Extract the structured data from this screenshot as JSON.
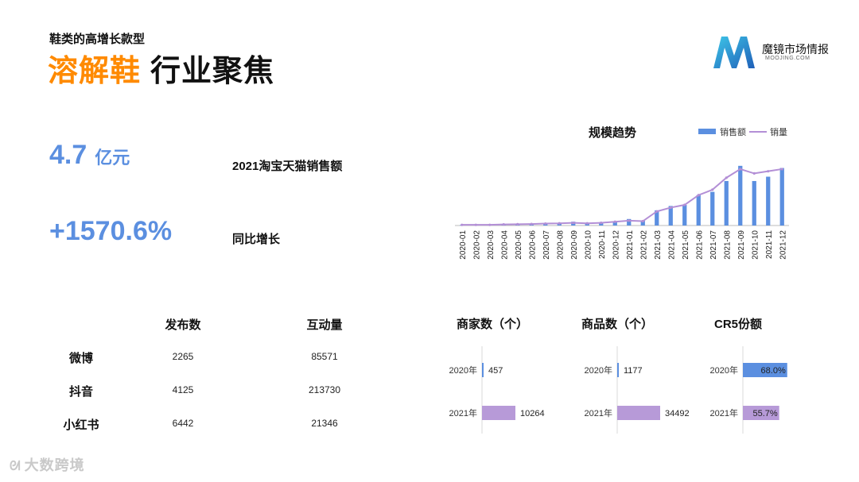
{
  "header": {
    "subtitle": "鞋类的高增长款型",
    "title_highlight": "溶解鞋",
    "title_rest": "行业聚焦"
  },
  "logo": {
    "name": "魔镜市场情报",
    "sub": "MOOJING.COM"
  },
  "stats": {
    "sales_value": "4.7",
    "sales_unit": "亿元",
    "sales_label": "2021淘宝天猫销售额",
    "growth_value": "+1570.6%",
    "growth_label": "同比增长"
  },
  "social": {
    "headers": [
      "发布数",
      "互动量"
    ],
    "rows": [
      {
        "platform": "微博",
        "posts": "2265",
        "interactions": "85571"
      },
      {
        "platform": "抖音",
        "posts": "4125",
        "interactions": "213730"
      },
      {
        "platform": "小红书",
        "posts": "6442",
        "interactions": "21346"
      }
    ]
  },
  "watermark": "大数跨境",
  "colors": {
    "accent_orange": "#ff8a00",
    "stat_blue": "#5b8fe0",
    "bar_blue": "#5b8fe0",
    "line_purple": "#b38fd6",
    "bar_purple": "#b79ad8"
  },
  "chart_data": [
    {
      "type": "bar",
      "title": "规模趋势",
      "legend": [
        "销售额",
        "销量"
      ],
      "legend_position": "top-right",
      "categories": [
        "2020-01",
        "2020-02",
        "2020-03",
        "2020-04",
        "2020-05",
        "2020-06",
        "2020-07",
        "2020-08",
        "2020-09",
        "2020-10",
        "2020-11",
        "2020-12",
        "2021-01",
        "2021-02",
        "2021-03",
        "2021-04",
        "2021-05",
        "2021-06",
        "2021-07",
        "2021-08",
        "2021-09",
        "2021-10",
        "2021-11",
        "2021-12"
      ],
      "series": [
        {
          "name": "销售额",
          "type": "bar",
          "values": [
            0.5,
            0.5,
            0.5,
            0.6,
            1,
            1.3,
            1.5,
            2,
            3.5,
            1.5,
            3,
            3.5,
            6,
            4.5,
            14,
            18,
            19,
            28,
            31,
            41,
            55,
            41,
            45,
            53
          ]
        },
        {
          "name": "销量",
          "type": "line",
          "values": [
            0.6,
            0.6,
            0.6,
            1,
            1.2,
            1.4,
            1.8,
            2,
            2.5,
            2,
            2.5,
            3.5,
            4.5,
            4,
            13,
            16.5,
            19,
            28,
            33,
            44,
            52,
            48,
            50,
            52
          ]
        }
      ],
      "ylim": [
        0,
        60
      ],
      "grid": false
    },
    {
      "type": "bar",
      "orientation": "horizontal",
      "title": "商家数（个）",
      "categories": [
        "2020年",
        "2021年"
      ],
      "values": [
        457,
        10264
      ],
      "labels": [
        "457",
        "10264"
      ]
    },
    {
      "type": "bar",
      "orientation": "horizontal",
      "title": "商品数（个）",
      "categories": [
        "2020年",
        "2021年"
      ],
      "values": [
        1177,
        34492
      ],
      "labels": [
        "1177",
        "34492"
      ]
    },
    {
      "type": "bar",
      "orientation": "horizontal",
      "title": "CR5份额",
      "categories": [
        "2020年",
        "2021年"
      ],
      "values": [
        68.0,
        55.7
      ],
      "labels": [
        "68.0%",
        "55.7%"
      ],
      "xlim": [
        0,
        100
      ]
    }
  ]
}
